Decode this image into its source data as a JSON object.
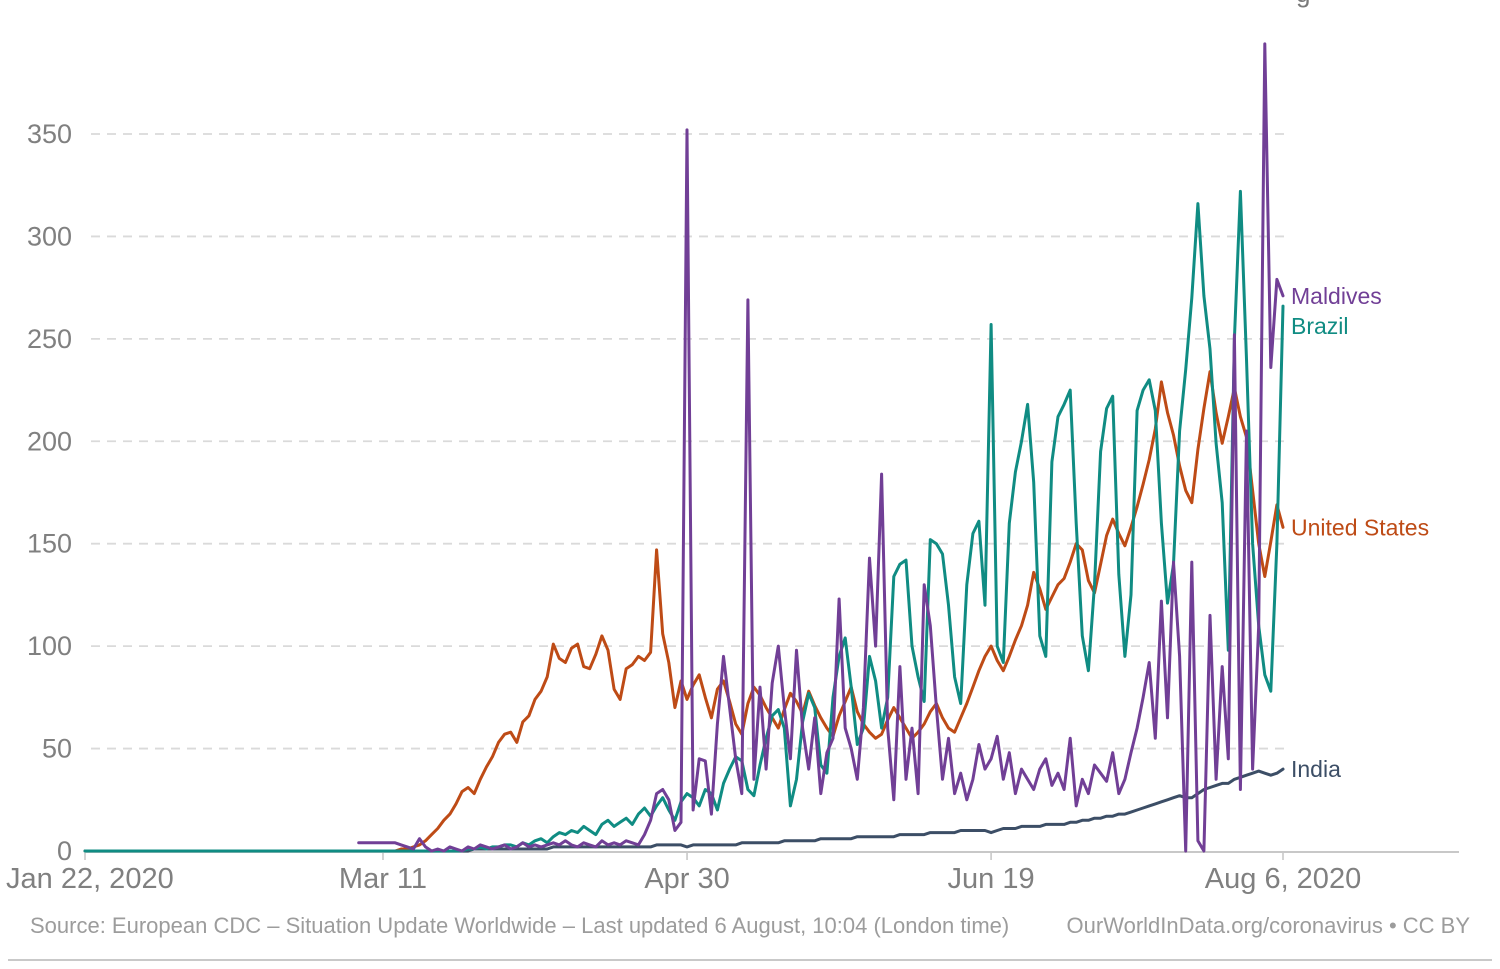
{
  "page": {
    "clipped_title_fragment": "g"
  },
  "footer": {
    "source": "Source: European CDC – Situation Update Worldwide – Last updated 6 August, 10:04 (London time)",
    "attribution": "OurWorldInData.org/coronavirus • CC BY"
  },
  "chart_data": {
    "type": "line",
    "title": "",
    "xlabel": "",
    "ylabel": "",
    "grid": "horizontal-dashed",
    "legend_position": "right-of-line-ends",
    "x_unit": "days since Jan 22, 2020 (daily values)",
    "x_range_days": [
      0,
      197
    ],
    "ylim": [
      0,
      397
    ],
    "y_ticks": [
      0,
      50,
      100,
      150,
      200,
      250,
      300,
      350
    ],
    "x_tick_labels": [
      {
        "label": "Jan 22, 2020",
        "day": 0
      },
      {
        "label": "Mar 11",
        "day": 49
      },
      {
        "label": "Apr 30",
        "day": 99
      },
      {
        "label": "Jun 19",
        "day": 149
      },
      {
        "label": "Aug 6, 2020",
        "day": 197
      }
    ],
    "colors": {
      "maldives": "#713f96",
      "brazil": "#108c83",
      "united_states": "#be4b16",
      "india": "#3c4e66",
      "axis_text": "#808080",
      "gridline": "#dadada",
      "axis_line": "#c8c8c8"
    },
    "series": [
      {
        "name": "United States",
        "color": "#be4b16",
        "values": [
          0,
          0,
          0,
          0,
          0,
          0,
          0,
          0,
          0,
          0,
          0,
          0,
          0,
          0,
          0,
          0,
          0,
          0,
          0,
          0,
          0,
          0,
          0,
          0,
          0,
          0,
          0,
          0,
          0,
          0,
          0,
          0,
          0,
          0,
          0,
          0,
          0,
          0,
          0,
          0,
          0,
          0,
          0,
          0,
          0,
          0,
          0,
          0,
          0,
          0,
          0,
          0,
          1,
          1,
          2,
          3,
          5,
          8,
          11,
          15,
          18,
          23,
          29,
          31,
          28,
          35,
          41,
          46,
          53,
          57,
          58,
          53,
          63,
          66,
          74,
          78,
          85,
          101,
          94,
          92,
          99,
          101,
          90,
          89,
          96,
          105,
          98,
          79,
          74,
          89,
          91,
          95,
          93,
          97,
          147,
          106,
          92,
          70,
          83,
          74,
          81,
          86,
          75,
          65,
          79,
          83,
          73,
          62,
          57,
          72,
          80,
          76,
          70,
          65,
          60,
          69,
          77,
          73,
          67,
          78,
          71,
          65,
          60,
          56,
          66,
          73,
          80,
          68,
          62,
          58,
          55,
          57,
          64,
          70,
          65,
          60,
          55,
          58,
          62,
          68,
          72,
          65,
          60,
          58,
          65,
          72,
          80,
          88,
          95,
          100,
          93,
          88,
          95,
          103,
          110,
          120,
          136,
          128,
          118,
          124,
          130,
          133,
          141,
          150,
          147,
          132,
          126,
          140,
          154,
          162,
          155,
          149,
          158,
          168,
          179,
          191,
          206,
          229,
          214,
          203,
          188,
          176,
          170,
          196,
          216,
          234,
          214,
          199,
          212,
          226,
          212,
          202,
          176,
          150,
          134,
          151,
          169,
          158
        ]
      },
      {
        "name": "India",
        "color": "#3c4e66",
        "values": [
          0,
          0,
          0,
          0,
          0,
          0,
          0,
          0,
          0,
          0,
          0,
          0,
          0,
          0,
          0,
          0,
          0,
          0,
          0,
          0,
          0,
          0,
          0,
          0,
          0,
          0,
          0,
          0,
          0,
          0,
          0,
          0,
          0,
          0,
          0,
          0,
          0,
          0,
          0,
          0,
          0,
          0,
          0,
          0,
          0,
          0,
          0,
          0,
          0,
          0,
          0,
          0,
          0,
          0,
          0,
          0,
          0,
          0,
          0,
          0,
          0,
          0,
          0,
          0,
          1,
          1,
          1,
          1,
          1,
          1,
          1,
          1,
          1,
          1,
          1,
          1,
          1,
          2,
          2,
          2,
          2,
          2,
          2,
          2,
          2,
          2,
          2,
          2,
          2,
          2,
          2,
          2,
          2,
          2,
          3,
          3,
          3,
          3,
          3,
          2,
          3,
          3,
          3,
          3,
          3,
          3,
          3,
          3,
          4,
          4,
          4,
          4,
          4,
          4,
          4,
          5,
          5,
          5,
          5,
          5,
          5,
          6,
          6,
          6,
          6,
          6,
          6,
          7,
          7,
          7,
          7,
          7,
          7,
          7,
          8,
          8,
          8,
          8,
          8,
          9,
          9,
          9,
          9,
          9,
          10,
          10,
          10,
          10,
          10,
          9,
          10,
          11,
          11,
          11,
          12,
          12,
          12,
          12,
          13,
          13,
          13,
          13,
          14,
          14,
          15,
          15,
          16,
          16,
          17,
          17,
          18,
          18,
          19,
          20,
          21,
          22,
          23,
          24,
          25,
          26,
          27,
          26,
          26,
          28,
          30,
          31,
          32,
          33,
          33,
          35,
          36,
          37,
          38,
          39,
          38,
          37,
          38,
          40
        ]
      },
      {
        "name": "Brazil",
        "color": "#108c83",
        "values": [
          0,
          0,
          0,
          0,
          0,
          0,
          0,
          0,
          0,
          0,
          0,
          0,
          0,
          0,
          0,
          0,
          0,
          0,
          0,
          0,
          0,
          0,
          0,
          0,
          0,
          0,
          0,
          0,
          0,
          0,
          0,
          0,
          0,
          0,
          0,
          0,
          0,
          0,
          0,
          0,
          0,
          0,
          0,
          0,
          0,
          0,
          0,
          0,
          0,
          0,
          0,
          0,
          0,
          0,
          0,
          0,
          0,
          0,
          0,
          0,
          0,
          0,
          0,
          1,
          1,
          2,
          1,
          2,
          2,
          3,
          3,
          2,
          4,
          3,
          5,
          6,
          4,
          7,
          9,
          8,
          10,
          9,
          12,
          10,
          8,
          13,
          15,
          12,
          14,
          16,
          13,
          18,
          21,
          17,
          22,
          26,
          20,
          15,
          24,
          28,
          26,
          22,
          30,
          28,
          20,
          33,
          40,
          46,
          44,
          30,
          27,
          42,
          55,
          66,
          69,
          60,
          22,
          35,
          63,
          77,
          70,
          42,
          38,
          75,
          95,
          104,
          80,
          52,
          60,
          95,
          83,
          60,
          75,
          134,
          140,
          142,
          100,
          85,
          73,
          152,
          150,
          145,
          120,
          85,
          72,
          130,
          155,
          161,
          120,
          257,
          100,
          92,
          160,
          185,
          200,
          218,
          180,
          105,
          95,
          190,
          212,
          218,
          225,
          160,
          105,
          88,
          130,
          195,
          216,
          222,
          135,
          95,
          125,
          215,
          225,
          230,
          215,
          160,
          121,
          140,
          205,
          235,
          270,
          316,
          271,
          245,
          199,
          170,
          98,
          250,
          322,
          240,
          150,
          110,
          86,
          78,
          150,
          266
        ]
      },
      {
        "name": "Maldives",
        "color": "#713f96",
        "values": [
          null,
          null,
          null,
          null,
          null,
          null,
          null,
          null,
          null,
          null,
          null,
          null,
          null,
          null,
          null,
          null,
          null,
          null,
          null,
          null,
          null,
          null,
          null,
          null,
          null,
          null,
          null,
          null,
          null,
          null,
          null,
          null,
          null,
          null,
          null,
          null,
          null,
          null,
          null,
          null,
          null,
          null,
          null,
          null,
          null,
          4,
          4,
          4,
          4,
          4,
          4,
          4,
          3,
          2,
          1,
          6,
          2,
          0,
          1,
          0,
          2,
          1,
          0,
          2,
          1,
          3,
          2,
          1,
          2,
          3,
          1,
          2,
          4,
          2,
          3,
          2,
          3,
          4,
          3,
          5,
          3,
          2,
          4,
          3,
          2,
          5,
          3,
          4,
          3,
          5,
          4,
          3,
          8,
          15,
          28,
          30,
          25,
          10,
          14,
          352,
          20,
          45,
          44,
          18,
          62,
          95,
          70,
          45,
          28,
          269,
          35,
          80,
          40,
          82,
          100,
          70,
          45,
          98,
          60,
          40,
          65,
          28,
          48,
          55,
          123,
          60,
          50,
          35,
          70,
          143,
          100,
          184,
          60,
          25,
          90,
          35,
          60,
          28,
          130,
          110,
          70,
          35,
          55,
          28,
          38,
          25,
          35,
          52,
          40,
          45,
          56,
          35,
          48,
          28,
          40,
          35,
          30,
          40,
          45,
          32,
          38,
          30,
          55,
          22,
          35,
          28,
          42,
          38,
          34,
          48,
          28,
          35,
          48,
          60,
          75,
          92,
          55,
          122,
          65,
          141,
          95,
          0,
          141,
          5,
          0,
          115,
          35,
          90,
          45,
          252,
          30,
          205,
          40,
          110,
          394,
          236,
          279,
          271
        ]
      }
    ]
  }
}
